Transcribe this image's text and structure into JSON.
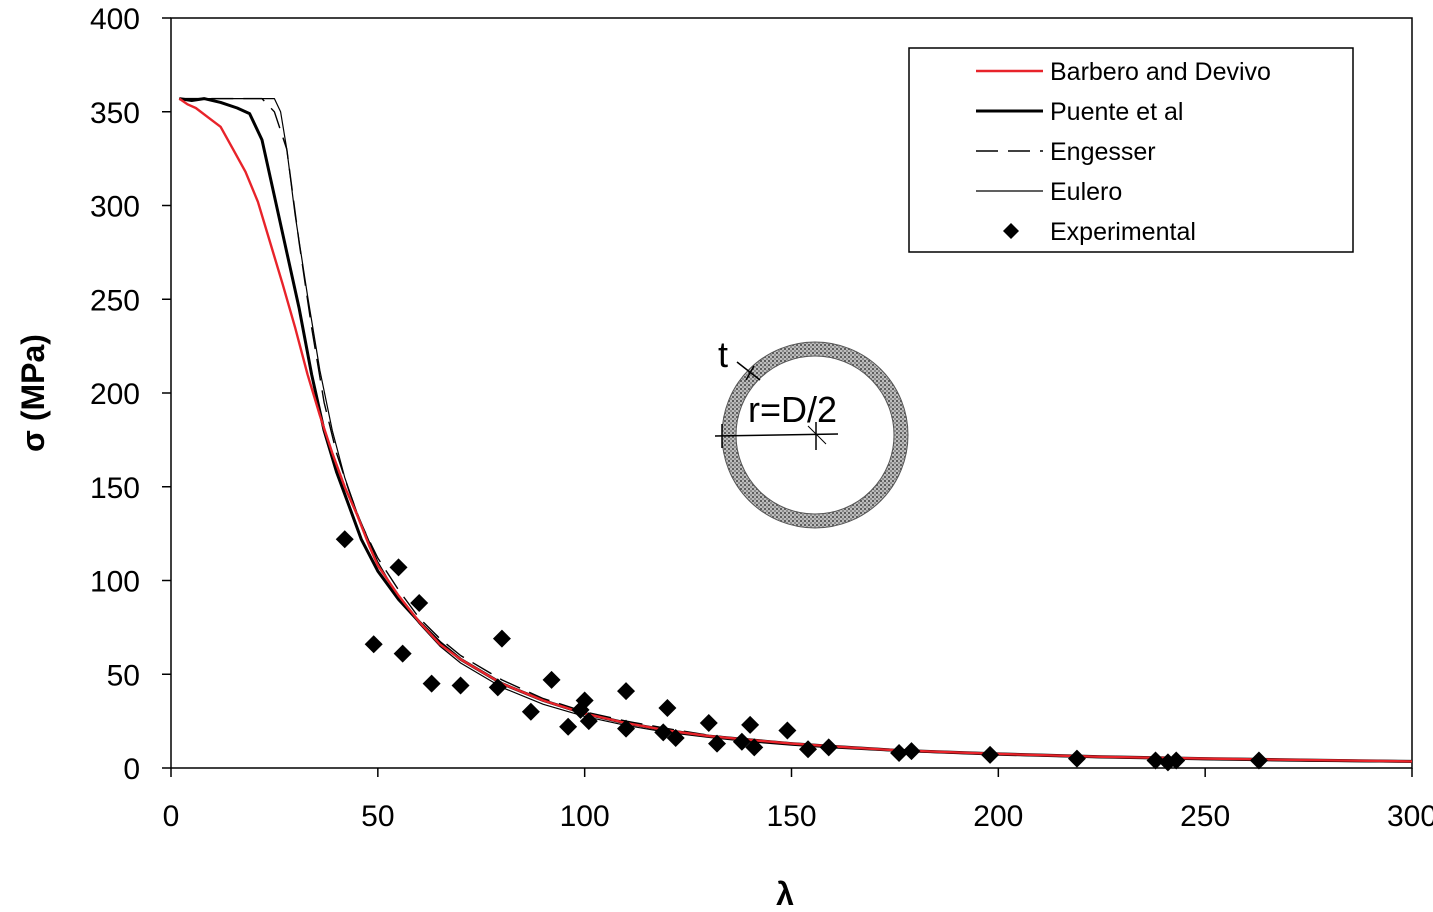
{
  "chart_data": {
    "type": "line",
    "title": "",
    "xlabel": "λ",
    "ylabel": "σ (MPa)",
    "xlim": [
      0,
      300
    ],
    "ylim": [
      0,
      400
    ],
    "xticks": [
      0,
      50,
      100,
      150,
      200,
      250,
      300
    ],
    "yticks": [
      0,
      50,
      100,
      150,
      200,
      250,
      300,
      350,
      400
    ],
    "grid": false,
    "legend_position": "top-right",
    "series": [
      {
        "name": "Barbero and Devivo",
        "kind": "line",
        "color": "#e8232a",
        "style": "solid",
        "points": [
          [
            2,
            357
          ],
          [
            4,
            354
          ],
          [
            6,
            352
          ],
          [
            9,
            347
          ],
          [
            12,
            342
          ],
          [
            15,
            330
          ],
          [
            18,
            318
          ],
          [
            21,
            302
          ],
          [
            24,
            280
          ],
          [
            27,
            258
          ],
          [
            30,
            235
          ],
          [
            33,
            210
          ],
          [
            36,
            188
          ],
          [
            39,
            168
          ],
          [
            42,
            150
          ],
          [
            45,
            135
          ],
          [
            48,
            118
          ],
          [
            50,
            108
          ],
          [
            55,
            92
          ],
          [
            60,
            78
          ],
          [
            65,
            66
          ],
          [
            70,
            58
          ],
          [
            80,
            45
          ],
          [
            90,
            36
          ],
          [
            100,
            29
          ],
          [
            110,
            24
          ],
          [
            120,
            20
          ],
          [
            130,
            17
          ],
          [
            140,
            15
          ],
          [
            150,
            13
          ],
          [
            160,
            11.5
          ],
          [
            175,
            9.5
          ],
          [
            200,
            7.5
          ],
          [
            225,
            6
          ],
          [
            250,
            5
          ],
          [
            275,
            4.2
          ],
          [
            300,
            3.5
          ]
        ]
      },
      {
        "name": "Puente et al",
        "kind": "line",
        "color": "#000000",
        "style": "thick",
        "points": [
          [
            2,
            357
          ],
          [
            5,
            356
          ],
          [
            8,
            357
          ],
          [
            12,
            355
          ],
          [
            16,
            352
          ],
          [
            19,
            349
          ],
          [
            22,
            335
          ],
          [
            25,
            305
          ],
          [
            28,
            275
          ],
          [
            31,
            245
          ],
          [
            34,
            210
          ],
          [
            37,
            180
          ],
          [
            40,
            158
          ],
          [
            43,
            140
          ],
          [
            46,
            122
          ],
          [
            50,
            105
          ],
          [
            55,
            90
          ],
          [
            60,
            78
          ],
          [
            65,
            67
          ],
          [
            70,
            58
          ],
          [
            80,
            45
          ],
          [
            90,
            36
          ],
          [
            100,
            29
          ],
          [
            110,
            24
          ],
          [
            120,
            20
          ],
          [
            130,
            17
          ],
          [
            140,
            15
          ],
          [
            150,
            13
          ],
          [
            160,
            11.5
          ],
          [
            175,
            9.5
          ],
          [
            200,
            7.5
          ],
          [
            225,
            6
          ],
          [
            250,
            5
          ],
          [
            275,
            4.2
          ],
          [
            300,
            3.5
          ]
        ]
      },
      {
        "name": "Engesser",
        "kind": "line",
        "color": "#000000",
        "style": "dashed",
        "points": [
          [
            2,
            357
          ],
          [
            22,
            357
          ],
          [
            25,
            350
          ],
          [
            28,
            330
          ],
          [
            31,
            280
          ],
          [
            34,
            235
          ],
          [
            37,
            195
          ],
          [
            40,
            168
          ],
          [
            43,
            148
          ],
          [
            46,
            130
          ],
          [
            50,
            112
          ],
          [
            55,
            95
          ],
          [
            60,
            80
          ],
          [
            65,
            69
          ],
          [
            70,
            60
          ],
          [
            80,
            47
          ],
          [
            90,
            37
          ],
          [
            100,
            30
          ],
          [
            110,
            25
          ],
          [
            120,
            21
          ],
          [
            130,
            17.5
          ],
          [
            140,
            15
          ],
          [
            150,
            13
          ],
          [
            160,
            11.5
          ],
          [
            175,
            9.6
          ],
          [
            200,
            7.4
          ],
          [
            225,
            5.8
          ],
          [
            250,
            4.7
          ],
          [
            275,
            3.9
          ],
          [
            300,
            3.3
          ]
        ]
      },
      {
        "name": "Eulero",
        "kind": "line",
        "color": "#000000",
        "style": "thin",
        "points": [
          [
            2,
            357
          ],
          [
            25,
            357
          ],
          [
            26.5,
            350
          ],
          [
            28,
            330
          ],
          [
            30,
            295
          ],
          [
            33,
            252
          ],
          [
            36,
            212
          ],
          [
            39,
            180
          ],
          [
            42,
            155
          ],
          [
            45,
            136
          ],
          [
            50,
            110
          ],
          [
            55,
            91
          ],
          [
            60,
            77
          ],
          [
            65,
            65
          ],
          [
            70,
            56
          ],
          [
            80,
            43
          ],
          [
            90,
            34
          ],
          [
            100,
            27.5
          ],
          [
            110,
            22.7
          ],
          [
            120,
            19
          ],
          [
            130,
            16.3
          ],
          [
            140,
            14
          ],
          [
            150,
            12.2
          ],
          [
            160,
            10.7
          ],
          [
            175,
            9
          ],
          [
            200,
            6.9
          ],
          [
            225,
            5.4
          ],
          [
            250,
            4.4
          ],
          [
            275,
            3.6
          ],
          [
            300,
            3.1
          ]
        ]
      },
      {
        "name": "Experimental",
        "kind": "scatter",
        "color": "#000000",
        "marker": "diamond",
        "points": [
          [
            42,
            122
          ],
          [
            49,
            66
          ],
          [
            55,
            107
          ],
          [
            56,
            61
          ],
          [
            60,
            88
          ],
          [
            63,
            45
          ],
          [
            70,
            44
          ],
          [
            79,
            43
          ],
          [
            80,
            69
          ],
          [
            87,
            30
          ],
          [
            92,
            47
          ],
          [
            96,
            22
          ],
          [
            99,
            31
          ],
          [
            100,
            36
          ],
          [
            101,
            25
          ],
          [
            110,
            21
          ],
          [
            110,
            41
          ],
          [
            119,
            19
          ],
          [
            120,
            32
          ],
          [
            122,
            16
          ],
          [
            130,
            24
          ],
          [
            132,
            13
          ],
          [
            138,
            14
          ],
          [
            140,
            23
          ],
          [
            141,
            11
          ],
          [
            149,
            20
          ],
          [
            154,
            10
          ],
          [
            159,
            11
          ],
          [
            176,
            8
          ],
          [
            179,
            9
          ],
          [
            198,
            7
          ],
          [
            219,
            5
          ],
          [
            238,
            4
          ],
          [
            241,
            3
          ],
          [
            243,
            4
          ],
          [
            263,
            4
          ]
        ]
      }
    ],
    "annotations": {
      "thickness_label": "t",
      "radius_label": "r=D/2"
    }
  }
}
